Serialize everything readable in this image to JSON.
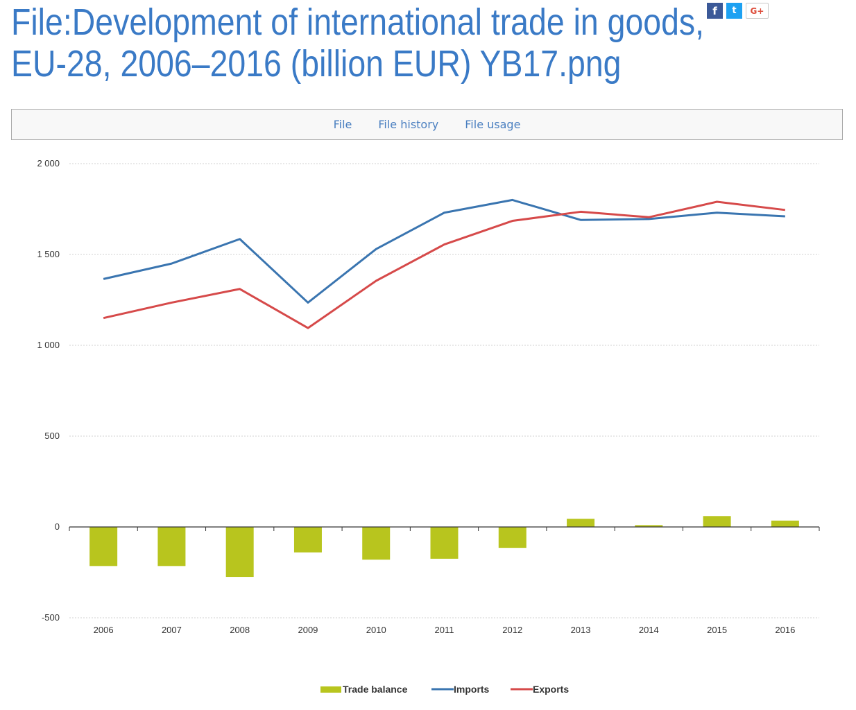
{
  "page": {
    "title": "File:Development of international trade in goods, EU-28, 2006–2016 (billion EUR) YB17.png"
  },
  "share": {
    "facebook": "f",
    "twitter": "t",
    "google": "G+"
  },
  "tabs": [
    {
      "label": "File"
    },
    {
      "label": "File history"
    },
    {
      "label": "File usage"
    }
  ],
  "chart_data": {
    "type": "bar+line",
    "title": "",
    "xlabel": "",
    "ylabel": "",
    "categories": [
      "2006",
      "2007",
      "2008",
      "2009",
      "2010",
      "2011",
      "2012",
      "2013",
      "2014",
      "2015",
      "2016"
    ],
    "ylim": [
      -500,
      2000
    ],
    "yticks": [
      2000,
      1500,
      1000,
      500,
      0,
      -500
    ],
    "ytick_labels": [
      "2 000",
      "1 500",
      "1 000",
      "500",
      "0",
      "-500"
    ],
    "grid": true,
    "legend_position": "bottom-center",
    "series": [
      {
        "name": "Trade balance",
        "kind": "bar",
        "color": "#b8c51e",
        "values": [
          -215,
          -215,
          -275,
          -140,
          -180,
          -175,
          -115,
          45,
          10,
          60,
          35
        ]
      },
      {
        "name": "Imports",
        "kind": "line",
        "color": "#3a75b0",
        "values": [
          1365,
          1450,
          1585,
          1235,
          1530,
          1730,
          1800,
          1690,
          1695,
          1730,
          1710
        ]
      },
      {
        "name": "Exports",
        "kind": "line",
        "color": "#d64a4a",
        "values": [
          1150,
          1235,
          1310,
          1095,
          1355,
          1555,
          1685,
          1735,
          1705,
          1790,
          1745
        ]
      }
    ]
  }
}
